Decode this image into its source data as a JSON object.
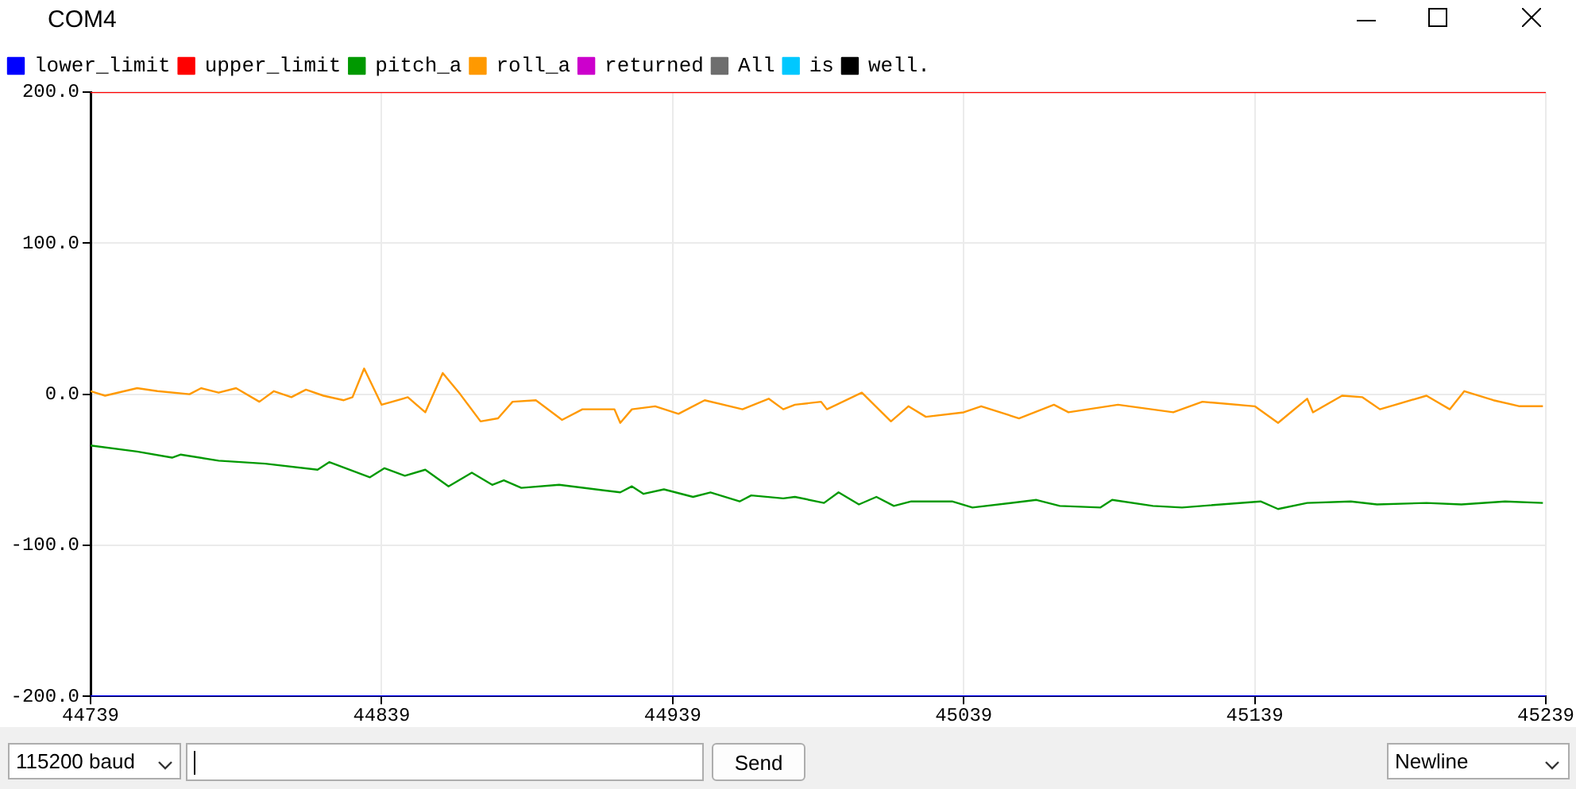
{
  "chart_data": {
    "type": "line",
    "annotations": [
      "COM4",
      "115200 baud",
      "Send",
      "Newline"
    ],
    "xlim": [
      44739,
      45239
    ],
    "xticks": [
      44739,
      44839,
      44939,
      45039,
      45139,
      45239
    ],
    "ylim": [
      -200,
      200
    ],
    "yticks": [
      {
        "value": -200,
        "label": "-200.0"
      },
      {
        "value": -100,
        "label": "-100.0"
      },
      {
        "value": 0,
        "label": "0.0"
      },
      {
        "value": 100,
        "label": "100.0"
      },
      {
        "value": 200,
        "label": "200.0"
      }
    ],
    "grid": true,
    "legend": "top left",
    "marker": "none",
    "line_style": "solid",
    "series": [
      {
        "name": "lower_limit",
        "color": "#0000ff",
        "x": [
          44739,
          45239
        ],
        "values": [
          -200,
          -200
        ]
      },
      {
        "name": "upper_limit",
        "color": "#ff0000",
        "x": [
          44739,
          45239
        ],
        "values": [
          200,
          200
        ]
      },
      {
        "name": "pitch_a",
        "color": "#009900",
        "x": [
          44739,
          44755,
          44767,
          44770,
          44783,
          44799,
          44817,
          44821,
          44835,
          44840,
          44847,
          44854,
          44862,
          44870,
          44877,
          44881,
          44887,
          44900,
          44921,
          44925,
          44929,
          44936,
          44946,
          44952,
          44962,
          44966,
          44977,
          44981,
          44991,
          44996,
          45003,
          45009,
          45015,
          45021,
          45035,
          45042,
          45064,
          45072,
          45086,
          45090,
          45104,
          45114,
          45141,
          45147,
          45157,
          45172,
          45181,
          45198,
          45210,
          45225,
          45238
        ],
        "values": [
          -34,
          -38,
          -42,
          -40,
          -44,
          -46,
          -50,
          -45,
          -55,
          -49,
          -54,
          -50,
          -61,
          -52,
          -60,
          -57,
          -62,
          -60,
          -65,
          -61,
          -66,
          -63,
          -68,
          -65,
          -71,
          -67,
          -69,
          -68,
          -72,
          -65,
          -73,
          -68,
          -74,
          -71,
          -71,
          -75,
          -70,
          -74,
          -75,
          -70,
          -74,
          -75,
          -71,
          -76,
          -72,
          -71,
          -73,
          -72,
          -73,
          -71,
          -72
        ]
      },
      {
        "name": "roll_a",
        "color": "#ff9900",
        "x": [
          44739,
          44744,
          44755,
          44762,
          44773,
          44777,
          44783,
          44789,
          44797,
          44802,
          44808,
          44813,
          44819,
          44826,
          44829,
          44833,
          44839,
          44848,
          44854,
          44860,
          44866,
          44873,
          44879,
          44884,
          44892,
          44901,
          44908,
          44919,
          44921,
          44925,
          44933,
          44941,
          44950,
          44963,
          44972,
          44977,
          44981,
          44990,
          44992,
          45004,
          45014,
          45020,
          45026,
          45039,
          45045,
          45058,
          45070,
          45075,
          45092,
          45111,
          45121,
          45139,
          45147,
          45157,
          45159,
          45169,
          45176,
          45182,
          45198,
          45206,
          45211,
          45221,
          45230,
          45238
        ],
        "values": [
          2,
          -1,
          4,
          2,
          0,
          4,
          1,
          4,
          -5,
          2,
          -2,
          3,
          -1,
          -4,
          -2,
          17,
          -7,
          -2,
          -12,
          14,
          0,
          -18,
          -16,
          -5,
          -4,
          -17,
          -10,
          -10,
          -19,
          -10,
          -8,
          -13,
          -4,
          -10,
          -3,
          -10,
          -7,
          -5,
          -10,
          1,
          -18,
          -8,
          -15,
          -12,
          -8,
          -16,
          -7,
          -12,
          -7,
          -12,
          -5,
          -8,
          -19,
          -3,
          -12,
          -1,
          -2,
          -10,
          -1,
          -10,
          2,
          -4,
          -8,
          -8
        ]
      },
      {
        "name": "returned",
        "color": "#cc00cc"
      },
      {
        "name": "All",
        "color": "#6e6e6e"
      },
      {
        "name": "is",
        "color": "#00c8ff"
      },
      {
        "name": "well.",
        "color": "#000000"
      }
    ]
  }
}
